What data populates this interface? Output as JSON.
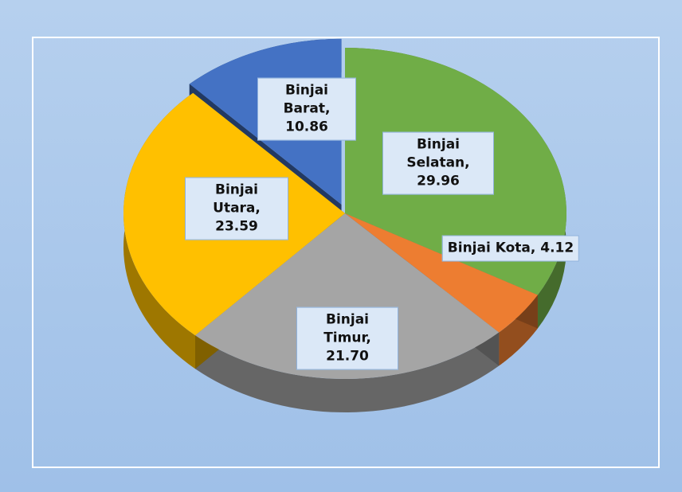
{
  "chart_data": {
    "type": "pie3d",
    "categories": [
      "Binjai Selatan",
      "Binjai Kota",
      "Binjai Timur",
      "Binjai Utara",
      "Binjai Barat"
    ],
    "values": [
      29.96,
      4.12,
      21.7,
      23.59,
      10.86
    ],
    "value_labels": [
      "Binjai Selatan, 29.96",
      "Binjai Kota, 4.12",
      "Binjai Timur, 21.70",
      "Binjai Utara, 23.59",
      "Binjai Barat, 10.86"
    ],
    "colors": [
      "#70ad47",
      "#ed7d31",
      "#a5a5a5",
      "#ffc000",
      "#4472c4"
    ]
  }
}
